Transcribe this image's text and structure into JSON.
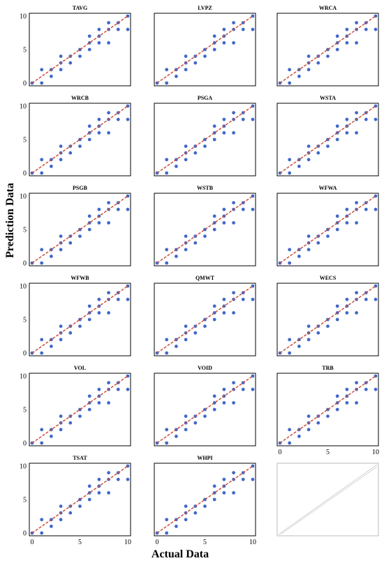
{
  "figure": {
    "xlabel": "Actual Data",
    "ylabel": "Prediction Data"
  },
  "style": {
    "point_color": "#4169c8",
    "line_color": "#c8503c",
    "frame_color": "#000000",
    "empty_diagonal_color": "#d0d0d0"
  },
  "shared": {
    "x": [
      0,
      1,
      1,
      2,
      2,
      3,
      3,
      3,
      4,
      4,
      5,
      5,
      6,
      6,
      6,
      7,
      7,
      7,
      8,
      8,
      8,
      9,
      9,
      10,
      10
    ],
    "y": [
      0,
      2,
      0,
      2,
      1,
      4,
      3,
      2,
      4,
      3,
      4,
      5,
      7,
      6,
      5,
      8,
      7,
      6,
      9,
      8,
      6,
      9,
      8,
      10,
      8
    ],
    "line": [
      [
        0,
        0
      ],
      [
        10,
        10
      ]
    ],
    "xlim": [
      0,
      10
    ],
    "ylim": [
      0,
      10
    ],
    "xticks": [
      "0",
      "5",
      "10"
    ],
    "yticks": [
      "0",
      "5",
      "10"
    ]
  },
  "chart_data": [
    {
      "type": "scatter",
      "title": "TAVG"
    },
    {
      "type": "scatter",
      "title": "LVPZ"
    },
    {
      "type": "scatter",
      "title": "WRCA"
    },
    {
      "type": "scatter",
      "title": "WRCB"
    },
    {
      "type": "scatter",
      "title": "PSGA"
    },
    {
      "type": "scatter",
      "title": "WSTA"
    },
    {
      "type": "scatter",
      "title": "PSGB"
    },
    {
      "type": "scatter",
      "title": "WSTB"
    },
    {
      "type": "scatter",
      "title": "WFWA"
    },
    {
      "type": "scatter",
      "title": "WFWB"
    },
    {
      "type": "scatter",
      "title": "QMWT"
    },
    {
      "type": "scatter",
      "title": "WECS"
    },
    {
      "type": "scatter",
      "title": "VOL"
    },
    {
      "type": "scatter",
      "title": "VOID"
    },
    {
      "type": "scatter",
      "title": "TRB"
    },
    {
      "type": "scatter",
      "title": "TSAT"
    },
    {
      "type": "scatter",
      "title": "WHPI"
    }
  ]
}
